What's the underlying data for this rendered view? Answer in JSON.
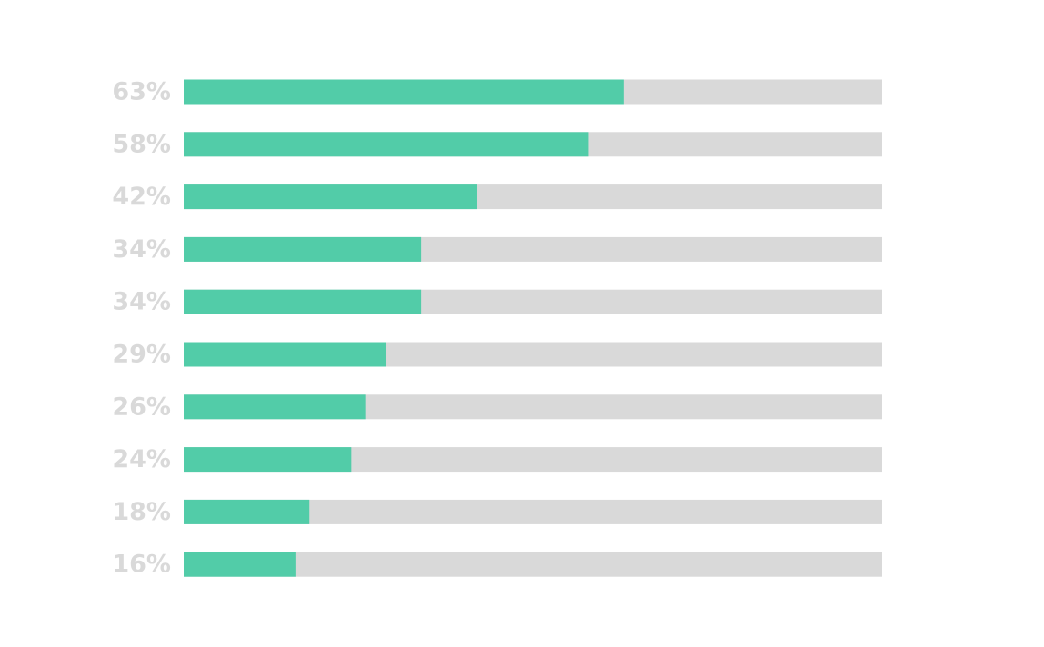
{
  "chart_data": {
    "type": "bar",
    "orientation": "horizontal",
    "values": [
      63,
      58,
      42,
      34,
      34,
      29,
      26,
      24,
      18,
      16
    ],
    "value_labels": [
      "63%",
      "58%",
      "42%",
      "34%",
      "34%",
      "29%",
      "26%",
      "24%",
      "18%",
      "16%"
    ],
    "color": "#52cca8",
    "track_color": "#d9d9d9",
    "label_color": "#d9d9d9",
    "xlim": [
      0,
      100
    ]
  }
}
